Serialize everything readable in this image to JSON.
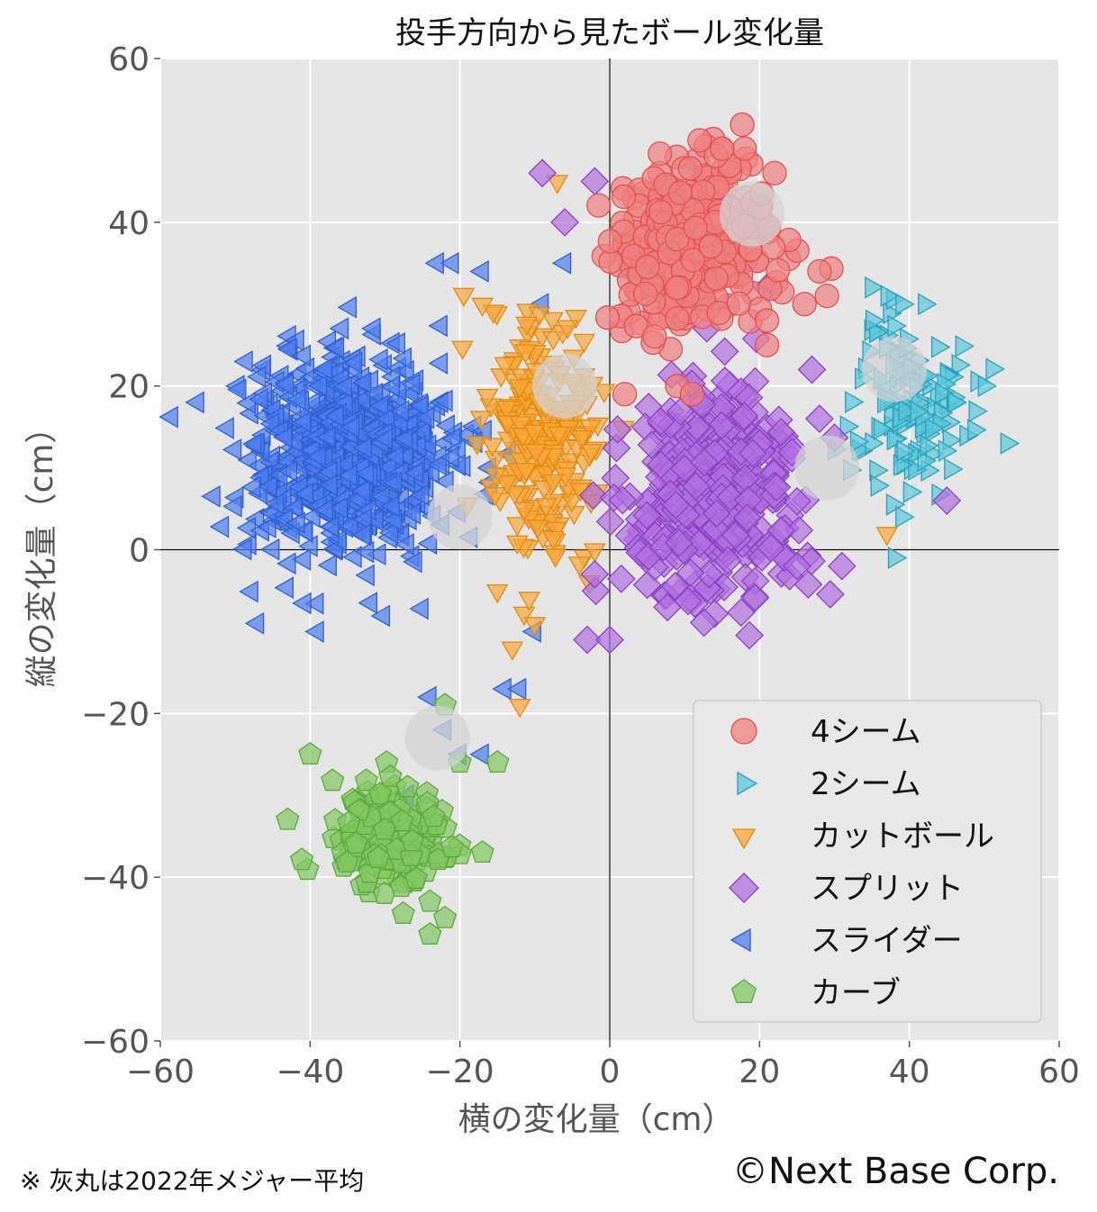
{
  "chart_data": {
    "type": "scatter",
    "title": "投手方向から見たボール変化量",
    "xlabel": "横の変化量（cm）",
    "ylabel": "縦の変化量（cm）",
    "xlim": [
      -60,
      60
    ],
    "ylim": [
      -60,
      60
    ],
    "xticks": [
      -60,
      -40,
      -20,
      0,
      20,
      40,
      60
    ],
    "yticks": [
      -60,
      -40,
      -20,
      0,
      20,
      40,
      60
    ],
    "tick_labels": [
      "−60",
      "−40",
      "−20",
      "0",
      "20",
      "40",
      "60"
    ],
    "grid": true,
    "background": "#e5e5e5",
    "legend_position": "lower-right",
    "series": [
      {
        "name": "4シーム",
        "marker": "circle",
        "color": "#f08080",
        "edge": "#e05050",
        "center": [
          11,
          37
        ],
        "spread": [
          7,
          6
        ],
        "count": 320,
        "league_avg": [
          19,
          41
        ],
        "extra_points": [
          [
            12,
            50
          ],
          [
            18,
            49
          ],
          [
            15,
            49
          ],
          [
            22,
            46
          ],
          [
            26,
            30
          ],
          [
            29,
            31
          ],
          [
            28,
            34
          ],
          [
            21,
            25
          ],
          [
            9,
            20
          ],
          [
            11,
            19
          ],
          [
            2,
            19
          ],
          [
            21,
            28
          ]
        ]
      },
      {
        "name": "2シーム",
        "marker": "triangle-right",
        "color": "#5bc8dc",
        "edge": "#2aa0b8",
        "center": [
          40,
          17
        ],
        "spread": [
          5,
          8
        ],
        "count": 110,
        "league_avg": [
          38,
          22
        ],
        "extra_points": [
          [
            53,
            13
          ],
          [
            37,
            31
          ],
          [
            42,
            30
          ],
          [
            39,
            30
          ],
          [
            35,
            28
          ],
          [
            38,
            -1
          ],
          [
            39,
            4
          ],
          [
            46,
            18
          ],
          [
            50,
            20
          ]
        ]
      },
      {
        "name": "カットボール",
        "marker": "triangle-down",
        "color": "#f9a83a",
        "edge": "#e08a10",
        "center": [
          -9,
          14
        ],
        "spread": [
          5,
          10
        ],
        "count": 230,
        "league_avg": [
          -6,
          20
        ],
        "extra_points": [
          [
            -7,
            45
          ],
          [
            -13,
            -12
          ],
          [
            -12,
            -19
          ],
          [
            -17,
            30
          ],
          [
            -15,
            -5
          ],
          [
            -10,
            -9
          ],
          [
            -2,
            0
          ],
          [
            37,
            2
          ]
        ]
      },
      {
        "name": "スプリット",
        "marker": "diamond",
        "color": "#b070e0",
        "edge": "#8a40c0",
        "center": [
          14,
          7
        ],
        "spread": [
          8,
          8
        ],
        "count": 380,
        "league_avg": [
          29,
          10
        ],
        "extra_points": [
          [
            -9,
            46
          ],
          [
            -2,
            45
          ],
          [
            -6,
            40
          ],
          [
            -3,
            -11
          ],
          [
            0,
            -11
          ],
          [
            -2,
            -3
          ],
          [
            31,
            -2
          ],
          [
            25,
            -2
          ],
          [
            28,
            16
          ],
          [
            27,
            22
          ],
          [
            45,
            6
          ],
          [
            21,
            32
          ],
          [
            18,
            35
          ]
        ]
      },
      {
        "name": "スライダー",
        "marker": "triangle-left",
        "color": "#4f7fef",
        "edge": "#2f5fcf",
        "center": [
          -35,
          12
        ],
        "spread": [
          9,
          8
        ],
        "count": 700,
        "league_avg": [
          -20,
          4
        ],
        "extra_points": [
          [
            -55,
            18
          ],
          [
            -47,
            -9
          ],
          [
            -39,
            -10
          ],
          [
            -24,
            -18
          ],
          [
            -22,
            -22
          ],
          [
            -14,
            -17
          ],
          [
            -12,
            -17
          ],
          [
            -20,
            -25
          ],
          [
            -17,
            -25
          ],
          [
            -27,
            -30
          ],
          [
            -27,
            -34
          ],
          [
            -10,
            -10
          ],
          [
            -6,
            35
          ],
          [
            -17,
            34
          ],
          [
            -21,
            35
          ],
          [
            -23,
            35
          ],
          [
            -16,
            10
          ],
          [
            -9,
            30
          ]
        ]
      },
      {
        "name": "カーブ",
        "marker": "pentagon",
        "color": "#82c860",
        "edge": "#5aa838",
        "center": [
          -30,
          -35
        ],
        "spread": [
          5,
          4
        ],
        "count": 160,
        "league_avg": [
          -23,
          -23
        ],
        "extra_points": [
          [
            -40,
            -25
          ],
          [
            -43,
            -33
          ],
          [
            -22,
            -19
          ],
          [
            -20,
            -26
          ],
          [
            -15,
            -26
          ],
          [
            -17,
            -37
          ],
          [
            -22,
            -45
          ],
          [
            -24,
            -43
          ],
          [
            -24,
            -47
          ],
          [
            -27,
            -29
          ]
        ]
      }
    ]
  },
  "footer": {
    "note": "※ 灰丸は2022年メジャー平均",
    "copyright": "©Next Base Corp."
  }
}
